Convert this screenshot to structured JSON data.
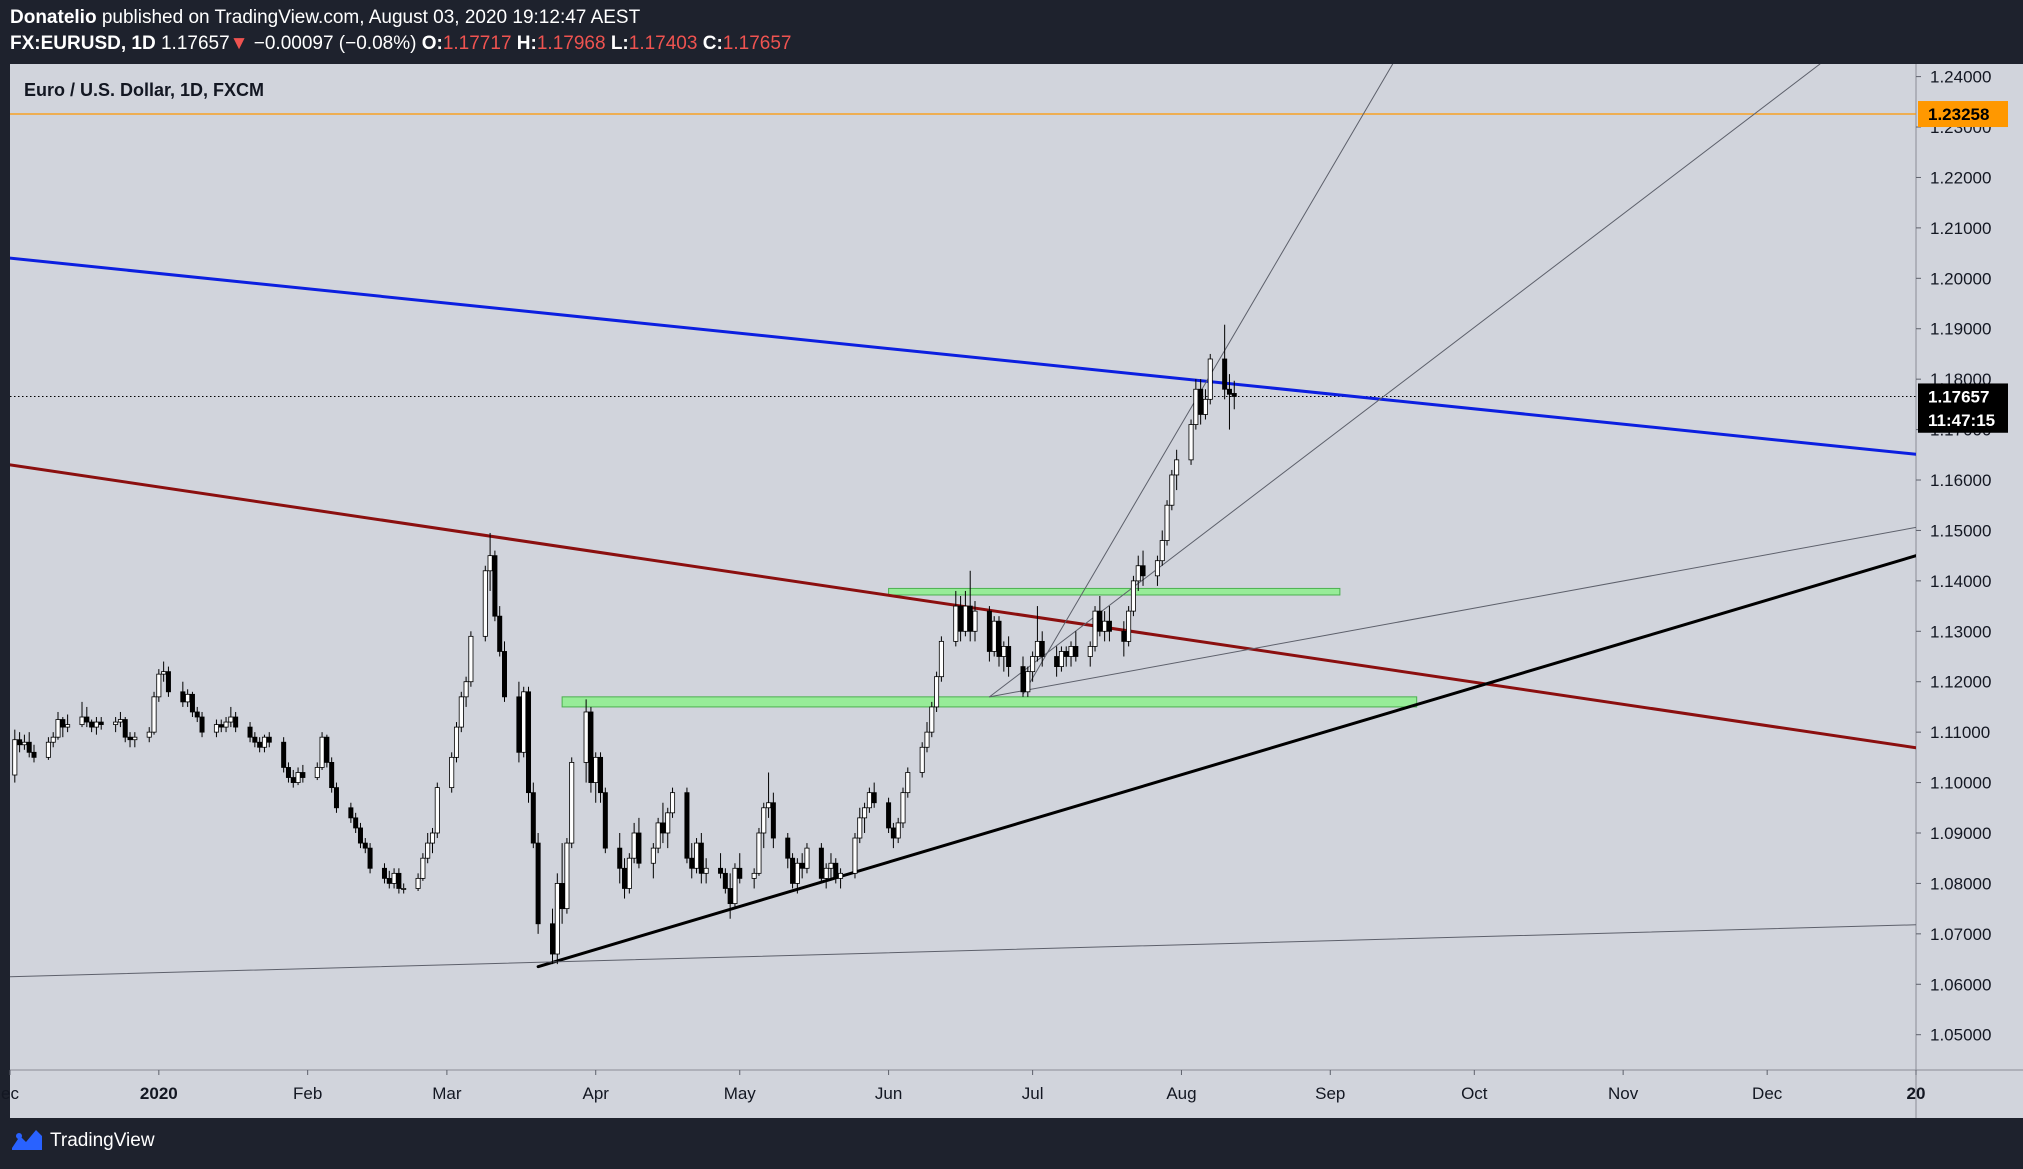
{
  "header": {
    "author": "Donatelio",
    "published": "published on TradingView.com, August 03, 2020 19:12:47 AEST",
    "symbol": "FX:EURUSD, 1D",
    "last": "1.17657",
    "change_arrow": "▼",
    "change": "−0.00097 (−0.08%)",
    "o_label": "O:",
    "o_value": "1.17717",
    "h_label": "H:",
    "h_value": "1.17968",
    "l_label": "L:",
    "l_value": "1.17403",
    "c_label": "C:",
    "c_value": "1.17657"
  },
  "footer": {
    "brand": "TradingView"
  },
  "chart_data": {
    "type": "candlestick",
    "title": "Euro / U.S. Dollar, 1D, FXCM",
    "ylim": [
      1.043,
      1.2425
    ],
    "y_ticks": [
      "1.24000",
      "1.23000",
      "1.22000",
      "1.21000",
      "1.20000",
      "1.19000",
      "1.18000",
      "1.17000",
      "1.16000",
      "1.15000",
      "1.14000",
      "1.13000",
      "1.12000",
      "1.11000",
      "1.10000",
      "1.09000",
      "1.08000",
      "1.07000",
      "1.06000",
      "1.05000"
    ],
    "x_ticks": [
      {
        "label": "ec",
        "date": "2019-12-01"
      },
      {
        "label": "2020",
        "date": "2020-01-01",
        "bold": true
      },
      {
        "label": "Feb",
        "date": "2020-02-01"
      },
      {
        "label": "Mar",
        "date": "2020-03-01"
      },
      {
        "label": "Apr",
        "date": "2020-04-01"
      },
      {
        "label": "May",
        "date": "2020-05-01"
      },
      {
        "label": "Jun",
        "date": "2020-06-01"
      },
      {
        "label": "Jul",
        "date": "2020-07-01"
      },
      {
        "label": "Aug",
        "date": "2020-08-01"
      },
      {
        "label": "Sep",
        "date": "2020-09-01"
      },
      {
        "label": "Oct",
        "date": "2020-10-01"
      },
      {
        "label": "Nov",
        "date": "2020-11-01"
      },
      {
        "label": "Dec",
        "date": "2020-12-01"
      },
      {
        "label": "20",
        "date": "2021-01-01",
        "bold": true
      }
    ],
    "x_range": [
      "2019-12-01",
      "2021-01-01"
    ],
    "grid": false,
    "colors": {
      "background": "#d1d4dc",
      "bull": "#ffffff",
      "bear": "#000000",
      "wick": "#000000"
    },
    "price_labels": [
      {
        "value": 1.23258,
        "text": "1.23258",
        "bg": "#ff9800",
        "fg": "#000000"
      },
      {
        "value": 1.17657,
        "text": "1.17657",
        "bg": "#000000",
        "fg": "#ffffff"
      },
      {
        "value": 1.17195,
        "text": "11:47:15",
        "bg": "#000000",
        "fg": "#ffffff"
      }
    ],
    "hlines": [
      {
        "value": 1.23258,
        "color": "#ff9800",
        "style": "solid"
      },
      {
        "value": 1.17657,
        "color": "#000000",
        "style": "dotted"
      }
    ],
    "trendlines": [
      {
        "name": "blue-resistance",
        "color": "#0c1fe0",
        "width": 3,
        "from": [
          "2019-12-01",
          1.204
        ],
        "to": [
          "2021-01-01",
          1.1651
        ]
      },
      {
        "name": "red-trendline",
        "color": "#8b0f0f",
        "width": 3,
        "from": [
          "2019-12-01",
          1.163
        ],
        "to": [
          "2021-01-01",
          1.1069
        ]
      },
      {
        "name": "black-support",
        "color": "#000000",
        "width": 3,
        "from": [
          "2020-03-20",
          1.0635
        ],
        "to": [
          "2021-01-01",
          1.145
        ]
      },
      {
        "name": "grey-long-support",
        "color": "#5d606b",
        "width": 1,
        "from": [
          "2019-12-01",
          1.0615
        ],
        "to": [
          "2021-01-01",
          1.0718
        ]
      },
      {
        "name": "grey-fan-1",
        "color": "#5d606b",
        "width": 1,
        "from": [
          "2020-06-22",
          1.117
        ],
        "to": [
          "2021-01-01",
          1.1506
        ]
      },
      {
        "name": "grey-fan-2",
        "color": "#5d606b",
        "width": 1,
        "from": [
          "2020-06-22",
          1.117
        ],
        "to": [
          "2020-12-12",
          1.2425
        ]
      },
      {
        "name": "grey-fan-3",
        "color": "#5d606b",
        "width": 1,
        "from": [
          "2020-06-29",
          1.1175
        ],
        "to": [
          "2020-09-14",
          1.2425
        ]
      }
    ],
    "zones": [
      {
        "name": "upper-demand-zone",
        "from": "2020-06-01",
        "to": "2020-09-03",
        "low": 1.1372,
        "high": 1.1385,
        "fill": "#90ee90",
        "stroke": "#4caf50"
      },
      {
        "name": "lower-demand-zone",
        "from": "2020-03-25",
        "to": "2020-09-19",
        "low": 1.115,
        "high": 1.117,
        "fill": "#90ee90",
        "stroke": "#4caf50"
      }
    ],
    "candles_start": "2019-12-01",
    "candles": [
      [
        1.1015,
        1.1105,
        1.1,
        1.1085
      ],
      [
        1.1085,
        1.11,
        1.106,
        1.1075
      ],
      [
        1.1075,
        1.1095,
        1.1065,
        1.108
      ],
      [
        1.108,
        1.11,
        1.105,
        1.106
      ],
      [
        1.106,
        1.1075,
        1.104,
        1.105
      ],
      [
        1.105,
        1.109,
        1.1045,
        1.108
      ],
      [
        1.108,
        1.11,
        1.107,
        1.109
      ],
      [
        1.109,
        1.114,
        1.1085,
        1.1125
      ],
      [
        1.1125,
        1.113,
        1.109,
        1.111
      ],
      [
        1.111,
        1.1135,
        1.11,
        1.1115
      ],
      [
        1.1115,
        1.116,
        1.111,
        1.113
      ],
      [
        1.113,
        1.115,
        1.111,
        1.112
      ],
      [
        1.112,
        1.1125,
        1.11,
        1.111
      ],
      [
        1.111,
        1.113,
        1.1095,
        1.112
      ],
      [
        1.112,
        1.113,
        1.1105,
        1.1115
      ],
      [
        1.1115,
        1.113,
        1.11,
        1.112
      ],
      [
        1.112,
        1.114,
        1.111,
        1.1125
      ],
      [
        1.1125,
        1.113,
        1.108,
        1.109
      ],
      [
        1.109,
        1.11,
        1.107,
        1.1085
      ],
      [
        1.1085,
        1.11,
        1.107,
        1.109
      ],
      [
        1.109,
        1.111,
        1.108,
        1.11
      ],
      [
        1.11,
        1.118,
        1.1095,
        1.117
      ],
      [
        1.117,
        1.1225,
        1.116,
        1.1215
      ],
      [
        1.1215,
        1.124,
        1.12,
        1.122
      ],
      [
        1.122,
        1.123,
        1.117,
        1.118
      ],
      [
        1.118,
        1.12,
        1.115,
        1.116
      ],
      [
        1.116,
        1.1185,
        1.115,
        1.1175
      ],
      [
        1.1175,
        1.118,
        1.113,
        1.114
      ],
      [
        1.114,
        1.115,
        1.112,
        1.113
      ],
      [
        1.113,
        1.114,
        1.109,
        1.11
      ],
      [
        1.11,
        1.1125,
        1.109,
        1.1115
      ],
      [
        1.1115,
        1.1125,
        1.11,
        1.111
      ],
      [
        1.111,
        1.113,
        1.11,
        1.112
      ],
      [
        1.112,
        1.115,
        1.111,
        1.113
      ],
      [
        1.113,
        1.114,
        1.11,
        1.111
      ],
      [
        1.111,
        1.112,
        1.108,
        1.109
      ],
      [
        1.109,
        1.11,
        1.107,
        1.108
      ],
      [
        1.108,
        1.109,
        1.106,
        1.107
      ],
      [
        1.107,
        1.1095,
        1.106,
        1.109
      ],
      [
        1.109,
        1.11,
        1.107,
        1.108
      ],
      [
        1.108,
        1.109,
        1.102,
        1.103
      ],
      [
        1.103,
        1.104,
        1.1,
        1.101
      ],
      [
        1.101,
        1.1025,
        1.099,
        1.1
      ],
      [
        1.1,
        1.103,
        1.0995,
        1.102
      ],
      [
        1.102,
        1.1035,
        1.1,
        1.101
      ],
      [
        1.101,
        1.104,
        1.1005,
        1.103
      ],
      [
        1.103,
        1.11,
        1.1025,
        1.109
      ],
      [
        1.109,
        1.1095,
        1.103,
        1.104
      ],
      [
        1.104,
        1.105,
        1.098,
        1.099
      ],
      [
        1.099,
        1.1,
        1.094,
        1.095
      ],
      [
        1.095,
        1.096,
        1.092,
        1.093
      ],
      [
        1.093,
        1.094,
        1.09,
        1.091
      ],
      [
        1.091,
        1.092,
        1.087,
        1.088
      ],
      [
        1.088,
        1.089,
        1.086,
        1.087
      ],
      [
        1.087,
        1.088,
        1.082,
        1.083
      ],
      [
        1.083,
        1.084,
        1.08,
        1.081
      ],
      [
        1.081,
        1.0825,
        1.079,
        1.08
      ],
      [
        1.08,
        1.083,
        1.079,
        1.082
      ],
      [
        1.082,
        1.083,
        1.078,
        1.079
      ],
      [
        1.079,
        1.08,
        1.078,
        1.079
      ],
      [
        1.079,
        1.082,
        1.0785,
        1.081
      ],
      [
        1.081,
        1.086,
        1.0805,
        1.085
      ],
      [
        1.085,
        1.09,
        1.084,
        1.088
      ],
      [
        1.088,
        1.091,
        1.086,
        1.09
      ],
      [
        1.09,
        1.1,
        1.089,
        1.099
      ],
      [
        1.099,
        1.106,
        1.098,
        1.105
      ],
      [
        1.105,
        1.112,
        1.104,
        1.111
      ],
      [
        1.111,
        1.118,
        1.11,
        1.117
      ],
      [
        1.117,
        1.121,
        1.115,
        1.12
      ],
      [
        1.12,
        1.13,
        1.119,
        1.129
      ],
      [
        1.129,
        1.143,
        1.128,
        1.142
      ],
      [
        1.142,
        1.1495,
        1.138,
        1.145
      ],
      [
        1.145,
        1.146,
        1.132,
        1.133
      ],
      [
        1.133,
        1.135,
        1.125,
        1.126
      ],
      [
        1.126,
        1.128,
        1.116,
        1.117
      ],
      [
        1.117,
        1.12,
        1.104,
        1.106
      ],
      [
        1.106,
        1.119,
        1.105,
        1.118
      ],
      [
        1.118,
        1.119,
        1.096,
        1.098
      ],
      [
        1.098,
        1.1,
        1.087,
        1.088
      ],
      [
        1.088,
        1.09,
        1.07,
        1.072
      ],
      [
        1.072,
        1.075,
        1.064,
        1.066
      ],
      [
        1.066,
        1.082,
        1.064,
        1.08
      ],
      [
        1.08,
        1.088,
        1.072,
        1.075
      ],
      [
        1.075,
        1.089,
        1.074,
        1.088
      ],
      [
        1.088,
        1.105,
        1.087,
        1.104
      ],
      [
        1.104,
        1.1165,
        1.1,
        1.114
      ],
      [
        1.114,
        1.115,
        1.098,
        1.1
      ],
      [
        1.1,
        1.106,
        1.096,
        1.105
      ],
      [
        1.105,
        1.106,
        1.096,
        1.098
      ],
      [
        1.098,
        1.099,
        1.086,
        1.087
      ],
      [
        1.087,
        1.09,
        1.08,
        1.083
      ],
      [
        1.083,
        1.085,
        1.077,
        1.079
      ],
      [
        1.079,
        1.086,
        1.078,
        1.085
      ],
      [
        1.085,
        1.092,
        1.084,
        1.09
      ],
      [
        1.09,
        1.093,
        1.083,
        1.084
      ],
      [
        1.084,
        1.088,
        1.081,
        1.087
      ],
      [
        1.087,
        1.093,
        1.086,
        1.092
      ],
      [
        1.092,
        1.096,
        1.088,
        1.09
      ],
      [
        1.09,
        1.095,
        1.087,
        1.094
      ],
      [
        1.094,
        1.099,
        1.093,
        1.098
      ],
      [
        1.098,
        1.099,
        1.084,
        1.085
      ],
      [
        1.085,
        1.088,
        1.081,
        1.083
      ],
      [
        1.083,
        1.089,
        1.082,
        1.088
      ],
      [
        1.088,
        1.09,
        1.08,
        1.082
      ],
      [
        1.082,
        1.085,
        1.08,
        1.083
      ],
      [
        1.083,
        1.086,
        1.081,
        1.082
      ],
      [
        1.082,
        1.083,
        1.078,
        1.079
      ],
      [
        1.079,
        1.082,
        1.073,
        1.076
      ],
      [
        1.076,
        1.084,
        1.075,
        1.083
      ],
      [
        1.083,
        1.086,
        1.08,
        1.081
      ],
      [
        1.081,
        1.083,
        1.079,
        1.082
      ],
      [
        1.082,
        1.091,
        1.0815,
        1.09
      ],
      [
        1.09,
        1.096,
        1.087,
        1.095
      ],
      [
        1.095,
        1.102,
        1.093,
        1.096
      ],
      [
        1.096,
        1.098,
        1.087,
        1.089
      ],
      [
        1.089,
        1.09,
        1.083,
        1.085
      ],
      [
        1.085,
        1.086,
        1.079,
        1.08
      ],
      [
        1.08,
        1.085,
        1.078,
        1.084
      ],
      [
        1.084,
        1.086,
        1.081,
        1.083
      ],
      [
        1.083,
        1.088,
        1.082,
        1.087
      ],
      [
        1.087,
        1.088,
        1.08,
        1.081
      ],
      [
        1.081,
        1.084,
        1.079,
        1.083
      ],
      [
        1.083,
        1.086,
        1.081,
        1.084
      ],
      [
        1.084,
        1.085,
        1.08,
        1.081
      ],
      [
        1.081,
        1.083,
        1.079,
        1.082
      ],
      [
        1.082,
        1.09,
        1.081,
        1.089
      ],
      [
        1.089,
        1.095,
        1.088,
        1.093
      ],
      [
        1.093,
        1.096,
        1.09,
        1.095
      ],
      [
        1.095,
        1.099,
        1.094,
        1.098
      ],
      [
        1.098,
        1.1,
        1.095,
        1.096
      ],
      [
        1.096,
        1.097,
        1.09,
        1.091
      ],
      [
        1.091,
        1.092,
        1.087,
        1.089
      ],
      [
        1.089,
        1.093,
        1.088,
        1.092
      ],
      [
        1.092,
        1.099,
        1.091,
        1.098
      ],
      [
        1.098,
        1.103,
        1.097,
        1.102
      ],
      [
        1.102,
        1.108,
        1.101,
        1.107
      ],
      [
        1.107,
        1.112,
        1.106,
        1.11
      ],
      [
        1.11,
        1.116,
        1.109,
        1.115
      ],
      [
        1.115,
        1.122,
        1.114,
        1.121
      ],
      [
        1.121,
        1.129,
        1.12,
        1.128
      ],
      [
        1.128,
        1.138,
        1.127,
        1.135
      ],
      [
        1.135,
        1.137,
        1.128,
        1.13
      ],
      [
        1.13,
        1.138,
        1.129,
        1.135
      ],
      [
        1.135,
        1.142,
        1.128,
        1.13
      ],
      [
        1.13,
        1.136,
        1.128,
        1.134
      ],
      [
        1.134,
        1.135,
        1.124,
        1.126
      ],
      [
        1.126,
        1.133,
        1.125,
        1.132
      ],
      [
        1.132,
        1.133,
        1.123,
        1.125
      ],
      [
        1.125,
        1.128,
        1.122,
        1.127
      ],
      [
        1.127,
        1.129,
        1.121,
        1.123
      ],
      [
        1.123,
        1.125,
        1.117,
        1.118
      ],
      [
        1.118,
        1.123,
        1.117,
        1.122
      ],
      [
        1.122,
        1.126,
        1.12,
        1.125
      ],
      [
        1.125,
        1.135,
        1.124,
        1.128
      ],
      [
        1.128,
        1.13,
        1.123,
        1.125
      ],
      [
        1.125,
        1.127,
        1.121,
        1.123
      ],
      [
        1.123,
        1.127,
        1.122,
        1.126
      ],
      [
        1.126,
        1.127,
        1.123,
        1.125
      ],
      [
        1.125,
        1.128,
        1.123,
        1.127
      ],
      [
        1.127,
        1.13,
        1.124,
        1.125
      ],
      [
        1.125,
        1.128,
        1.123,
        1.127
      ],
      [
        1.127,
        1.135,
        1.126,
        1.134
      ],
      [
        1.134,
        1.137,
        1.129,
        1.13
      ],
      [
        1.13,
        1.134,
        1.128,
        1.132
      ],
      [
        1.132,
        1.135,
        1.128,
        1.13
      ],
      [
        1.13,
        1.132,
        1.125,
        1.128
      ],
      [
        1.128,
        1.135,
        1.127,
        1.134
      ],
      [
        1.134,
        1.141,
        1.133,
        1.14
      ],
      [
        1.14,
        1.145,
        1.138,
        1.143
      ],
      [
        1.143,
        1.146,
        1.139,
        1.141
      ],
      [
        1.141,
        1.145,
        1.139,
        1.144
      ],
      [
        1.144,
        1.15,
        1.143,
        1.148
      ],
      [
        1.148,
        1.156,
        1.147,
        1.155
      ],
      [
        1.155,
        1.162,
        1.154,
        1.161
      ],
      [
        1.161,
        1.166,
        1.158,
        1.164
      ],
      [
        1.164,
        1.172,
        1.163,
        1.171
      ],
      [
        1.171,
        1.18,
        1.17,
        1.178
      ],
      [
        1.178,
        1.18,
        1.171,
        1.173
      ],
      [
        1.173,
        1.178,
        1.172,
        1.176
      ],
      [
        1.176,
        1.185,
        1.175,
        1.184
      ],
      [
        1.184,
        1.1908,
        1.176,
        1.178
      ],
      [
        1.178,
        1.181,
        1.17,
        1.177
      ],
      [
        1.17717,
        1.17968,
        1.17403,
        1.17657
      ]
    ]
  }
}
